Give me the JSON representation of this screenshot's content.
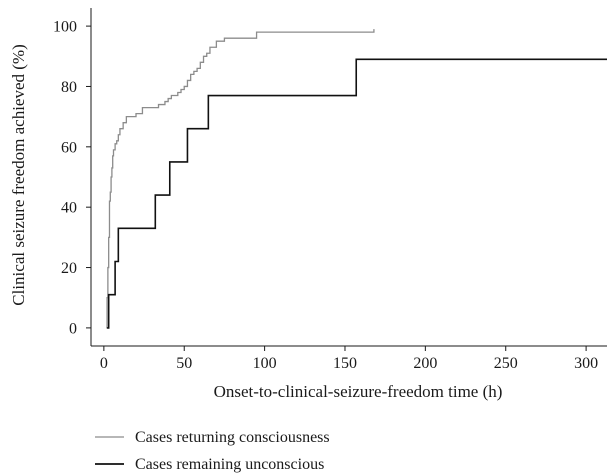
{
  "chart_data": {
    "type": "line",
    "step": true,
    "xlabel": "Onset-to-clinical-seizure-freedom time (h)",
    "ylabel": "Clinical seizure freedom achieved (%)",
    "xlim": [
      -8,
      313
    ],
    "ylim": [
      -6,
      106
    ],
    "xticks": [
      0,
      50,
      100,
      150,
      200,
      250,
      300
    ],
    "yticks": [
      0,
      20,
      40,
      60,
      80,
      100
    ],
    "grid": false,
    "legend": "bottom",
    "series": [
      {
        "name": "Cases returning consciousness",
        "color": "#8c8c8c",
        "x": [
          1.5,
          2,
          2.5,
          3,
          3.5,
          4,
          4.5,
          5,
          5.5,
          6,
          7,
          8,
          9,
          10,
          12,
          14,
          16,
          20,
          24,
          28,
          34,
          38,
          40,
          42,
          44,
          46,
          48,
          50,
          52,
          54,
          56,
          58,
          60,
          62,
          64,
          66,
          70,
          75,
          85,
          95,
          168
        ],
        "y": [
          0,
          10,
          20,
          30,
          42,
          45,
          50,
          53,
          57,
          59,
          61,
          62,
          64,
          66,
          68,
          70,
          70,
          71,
          73,
          73,
          74,
          75,
          76,
          77,
          77,
          78,
          79,
          80,
          82,
          84,
          85,
          86,
          88,
          90,
          91,
          93,
          95,
          96,
          96,
          98,
          99
        ]
      },
      {
        "name": "Cases remaining unconscious",
        "color": "#111111",
        "x": [
          2,
          3,
          7,
          9,
          32,
          41,
          52,
          65,
          157,
          313
        ],
        "y": [
          0,
          11,
          22,
          33,
          44,
          55,
          66,
          77,
          89,
          89
        ]
      }
    ]
  }
}
